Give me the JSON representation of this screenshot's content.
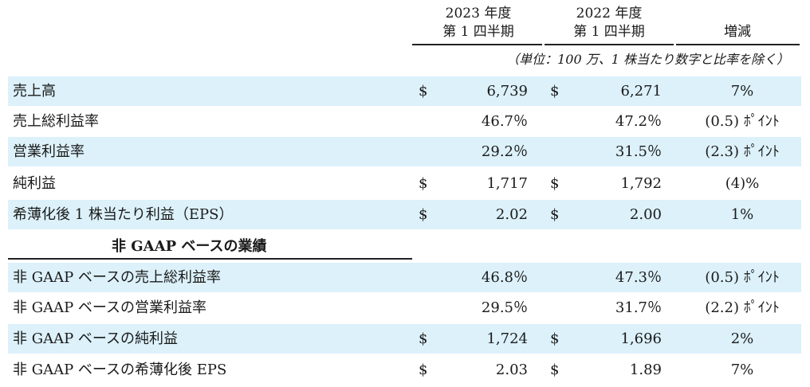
{
  "header": {
    "col1_line1": "2023 年度",
    "col1_line2": "第 1 四半期",
    "col2_line1": "2022 年度",
    "col2_line2": "第 1 四半期",
    "col3": "増減"
  },
  "unit_note": "（単位：100 万、1 株当たり数字と比率を除く）",
  "rows": [
    {
      "label": "売上高",
      "dollar1": "$",
      "val1": "6,739",
      "dollar2": "$",
      "val2": "6,271",
      "change": "7%"
    },
    {
      "label": "売上総利益率",
      "dollar1": "",
      "val1": "46.7％",
      "dollar2": "",
      "val2": "47.2％",
      "change": "(0.5) ﾎﾟｲﾝﾄ"
    },
    {
      "label": "営業利益率",
      "dollar1": "",
      "val1": "29.2％",
      "dollar2": "",
      "val2": "31.5％",
      "change": "(2.3) ﾎﾟｲﾝﾄ"
    },
    {
      "label": "純利益",
      "dollar1": "$",
      "val1": "1,717",
      "dollar2": "$",
      "val2": "1,792",
      "change": "(4)%"
    },
    {
      "label": "希薄化後 1 株当たり利益（EPS）",
      "dollar1": "$",
      "val1": "2.02",
      "dollar2": "$",
      "val2": "2.00",
      "change": "1%"
    }
  ],
  "section_title": "非 GAAP ベースの業績",
  "nongaap_rows": [
    {
      "label": "非 GAAP ベースの売上総利益率",
      "dollar1": "",
      "val1": "46.8％",
      "dollar2": "",
      "val2": "47.3％",
      "change": "(0.5) ﾎﾟｲﾝﾄ"
    },
    {
      "label": "非 GAAP ベースの営業利益率",
      "dollar1": "",
      "val1": "29.5％",
      "dollar2": "",
      "val2": "31.7％",
      "change": "(2.2) ﾎﾟｲﾝﾄ"
    },
    {
      "label": "非 GAAP ベースの純利益",
      "dollar1": "$",
      "val1": "1,724",
      "dollar2": "$",
      "val2": "1,696",
      "change": "2%"
    },
    {
      "label": "非 GAAP ベースの希薄化後 EPS",
      "dollar1": "$",
      "val1": "2.03",
      "dollar2": "$",
      "val2": "1.89",
      "change": "7%"
    }
  ],
  "colors": {
    "row_shade": "#dcf1fa",
    "text": "#1a1a1a"
  }
}
